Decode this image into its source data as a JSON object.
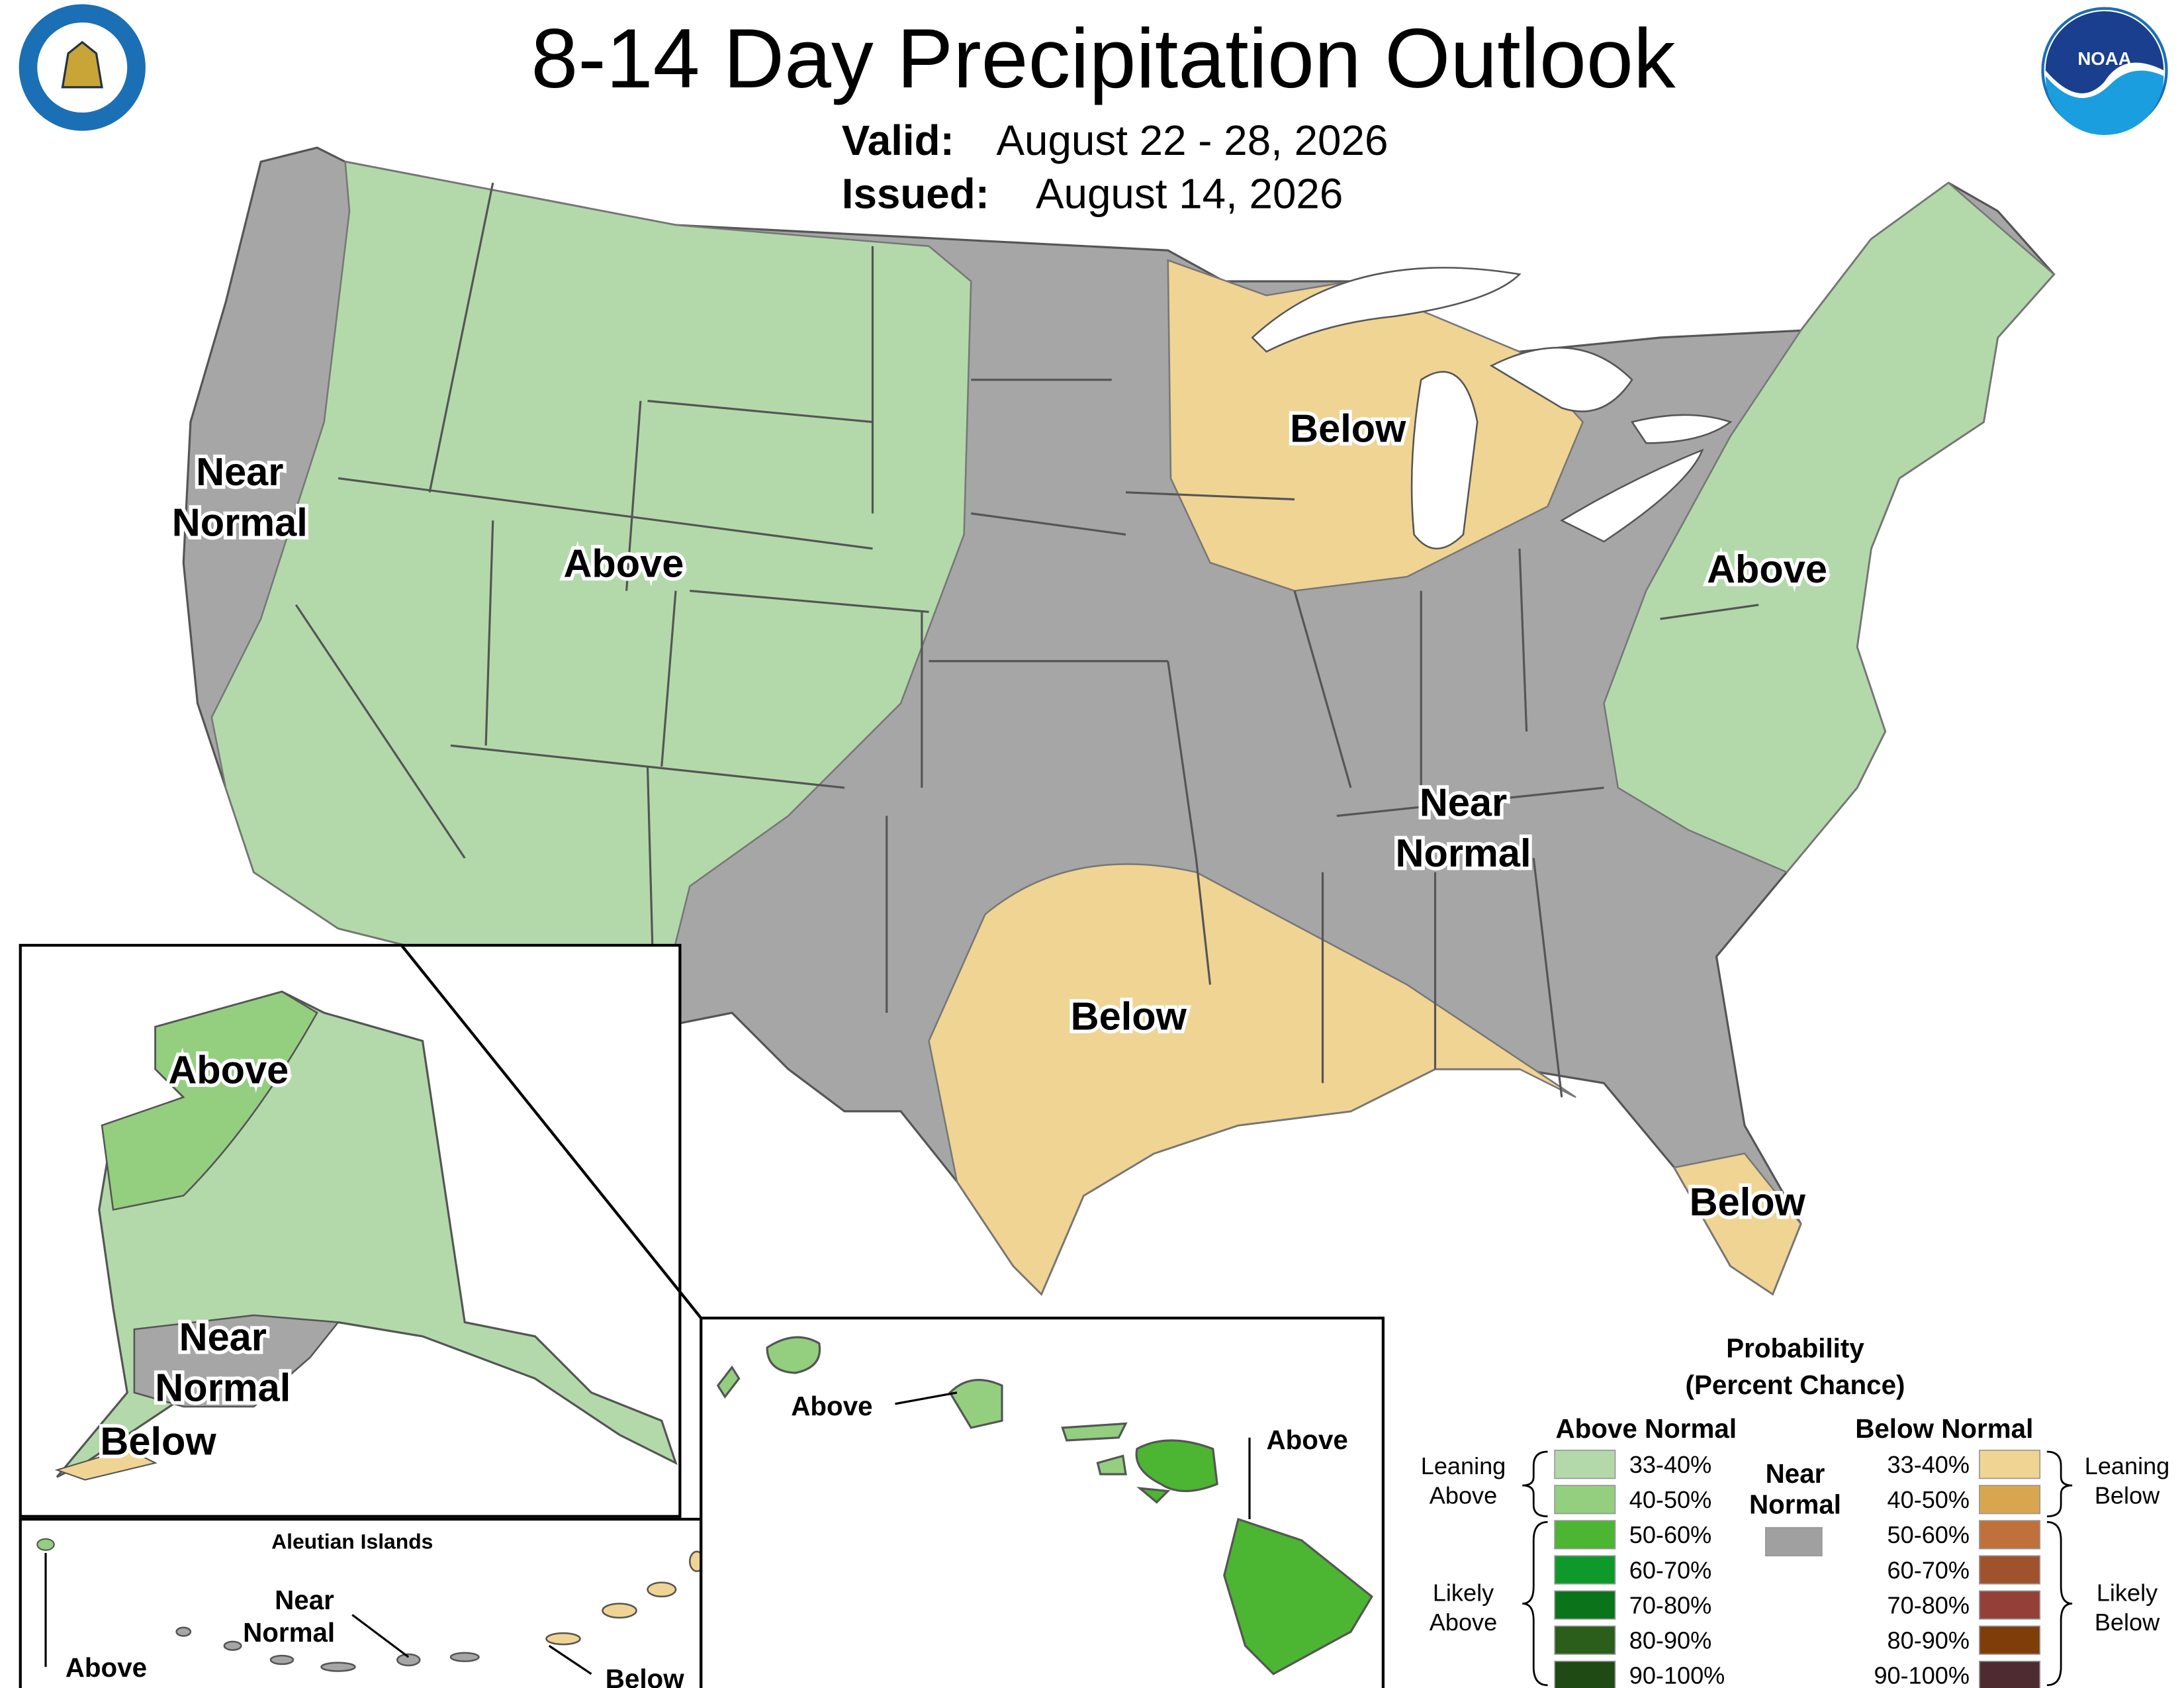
{
  "header": {
    "title": "8-14 Day Precipitation Outlook",
    "valid_label": "Valid:",
    "valid": "August 22 - 28, 2026",
    "issued_label": "Issued:",
    "issued": "August 14, 2026"
  },
  "logos": {
    "noaa": "NOAA"
  },
  "conus_labels": [
    {
      "lines": [
        "Near",
        "Normal"
      ]
    },
    {
      "lines": [
        "Above"
      ]
    },
    {
      "lines": [
        "Below"
      ]
    },
    {
      "lines": [
        "Above"
      ]
    },
    {
      "lines": [
        "Near",
        "Normal"
      ]
    },
    {
      "lines": [
        "Below"
      ]
    },
    {
      "lines": [
        "Below"
      ]
    }
  ],
  "alaska": {
    "labels": [
      "Above",
      "Near",
      "Normal",
      "Below"
    ]
  },
  "aleutians": {
    "title": "Aleutian Islands",
    "labels": [
      "Above",
      "Near",
      "Normal",
      "Below"
    ]
  },
  "hawaii": {
    "labels": [
      "Above",
      "Above"
    ]
  },
  "legend": {
    "title": [
      "Probability",
      "(Percent Chance)"
    ],
    "above_header": "Above Normal",
    "below_header": "Below Normal",
    "near": [
      "Near",
      "Normal"
    ],
    "near_color": "#a0a0a0",
    "leaning_above": [
      "Leaning",
      "Above"
    ],
    "likely_above": [
      "Likely",
      "Above"
    ],
    "leaning_below": [
      "Leaning",
      "Below"
    ],
    "likely_below": [
      "Likely",
      "Below"
    ],
    "above_items": [
      {
        "label": "33-40%",
        "color": "#b3d9ab"
      },
      {
        "label": "40-50%",
        "color": "#93cf7f"
      },
      {
        "label": "50-60%",
        "color": "#4cb531"
      },
      {
        "label": "60-70%",
        "color": "#0e9a2a"
      },
      {
        "label": "70-80%",
        "color": "#0a741b"
      },
      {
        "label": "80-90%",
        "color": "#2b5e1b"
      },
      {
        "label": "90-100%",
        "color": "#1f4a13"
      }
    ],
    "below_items": [
      {
        "label": "33-40%",
        "color": "#f0d493"
      },
      {
        "label": "40-50%",
        "color": "#d9a64f"
      },
      {
        "label": "50-60%",
        "color": "#c0703a"
      },
      {
        "label": "60-70%",
        "color": "#a0522d"
      },
      {
        "label": "70-80%",
        "color": "#944038"
      },
      {
        "label": "80-90%",
        "color": "#7f3d0a"
      },
      {
        "label": "90-100%",
        "color": "#4d2b2e"
      }
    ]
  }
}
